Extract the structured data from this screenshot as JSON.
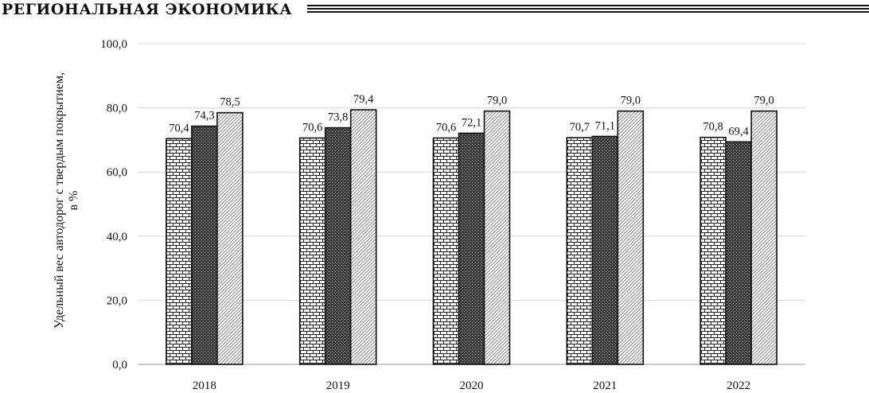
{
  "header": {
    "title": "РЕГИОНАЛЬНАЯ ЭКОНОМИКА"
  },
  "chart_data": {
    "type": "bar",
    "categories": [
      "2018",
      "2019",
      "2020",
      "2021",
      "2022"
    ],
    "series": [
      {
        "values": [
          70.4,
          70.6,
          70.6,
          70.7,
          70.8
        ],
        "pattern": "brick"
      },
      {
        "values": [
          74.3,
          73.8,
          72.1,
          71.1,
          69.4
        ],
        "pattern": "dark-dots"
      },
      {
        "values": [
          78.5,
          79.4,
          79.0,
          79.0,
          79.0
        ],
        "pattern": "diagonal-hatch"
      }
    ],
    "data_labels": [
      [
        "70,4",
        "74,3",
        "78,5"
      ],
      [
        "70,6",
        "73,8",
        "79,4"
      ],
      [
        "70,6",
        "72,1",
        "79,0"
      ],
      [
        "70,7",
        "71,1",
        "79,0"
      ],
      [
        "70,8",
        "69,4",
        "79,0"
      ]
    ],
    "yticks": [
      0,
      20,
      40,
      60,
      80,
      100
    ],
    "ytick_labels": [
      "0,0",
      "20,0",
      "40,0",
      "60,0",
      "80,0",
      "100,0"
    ],
    "ylim": [
      0,
      100
    ],
    "ylabel_line1": "Удельный вес автодорог с твердым покрытием,",
    "ylabel_line2": "в %",
    "grid": true,
    "legend": "none"
  }
}
